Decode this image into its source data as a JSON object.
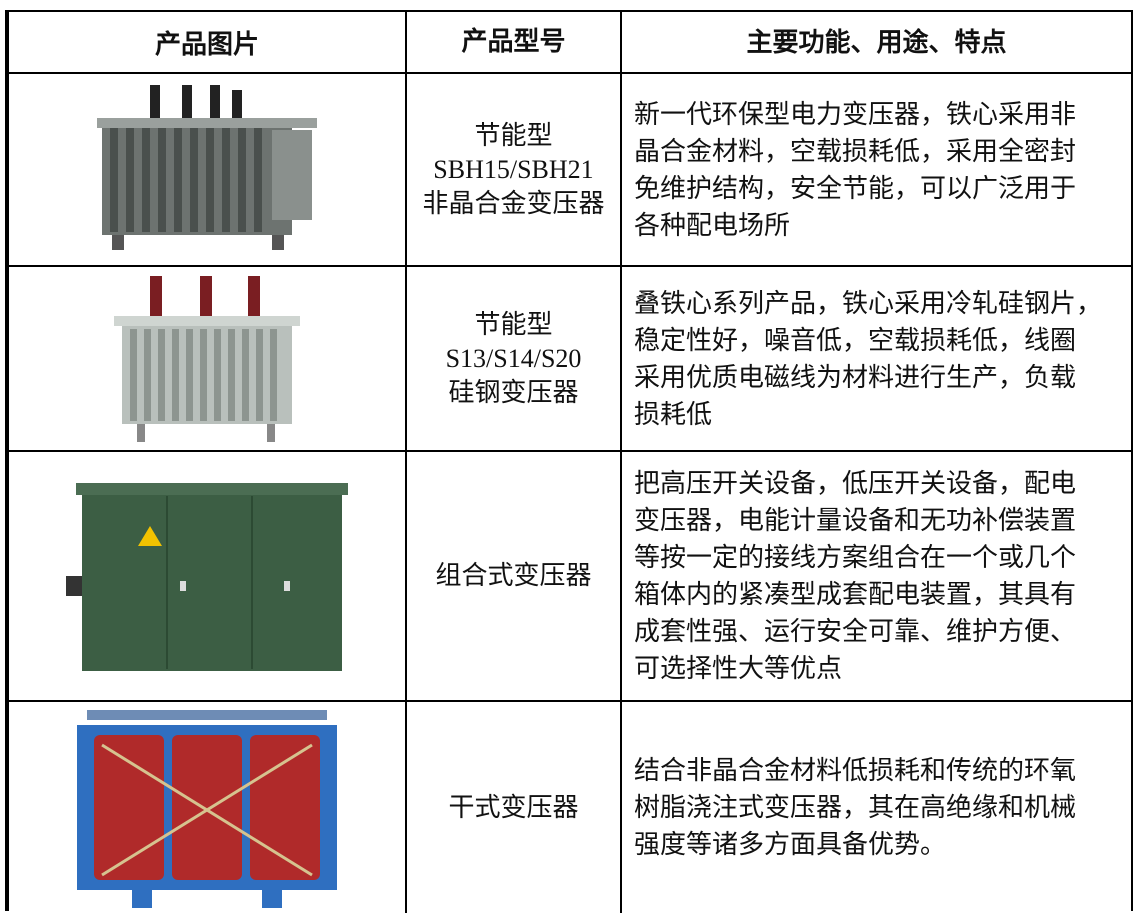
{
  "table": {
    "header": [
      "产品图片",
      "产品型号",
      "主要功能、用途、特点"
    ],
    "rows": [
      {
        "model": [
          "节能型",
          "SBH15/SBH21",
          "非晶合金变压器"
        ],
        "description": [
          "新一代环保型电力变压器，铁心采用非",
          "晶合金材料，空载损耗低，采用全密封",
          "免维护结构，安全节能，可以广泛用于",
          "各种配电场所"
        ]
      },
      {
        "model": [
          "节能型",
          "S13/S14/S20",
          "硅钢变压器"
        ],
        "description": [
          "叠铁心系列产品，铁心采用冷轧硅钢片，",
          "稳定性好，噪音低，空载损耗低，线圈",
          "采用优质电磁线为材料进行生产，负载",
          "损耗低"
        ]
      },
      {
        "model": [
          "组合式变压器"
        ],
        "description": [
          "把高压开关设备，低压开关设备，配电",
          "变压器，电能计量设备和无功补偿装置",
          "等按一定的接线方案组合在一个或几个",
          "箱体内的紧凑型成套配电装置，其具有",
          "成套性强、运行安全可靠、维护方便、",
          "可选择性大等优点"
        ]
      },
      {
        "model": [
          "干式变压器"
        ],
        "description": [
          "结合非晶合金材料低损耗和传统的环氧",
          "树脂浇注式变压器，其在高绝缘和机械",
          "强度等诸多方面具备优势。"
        ]
      }
    ]
  }
}
